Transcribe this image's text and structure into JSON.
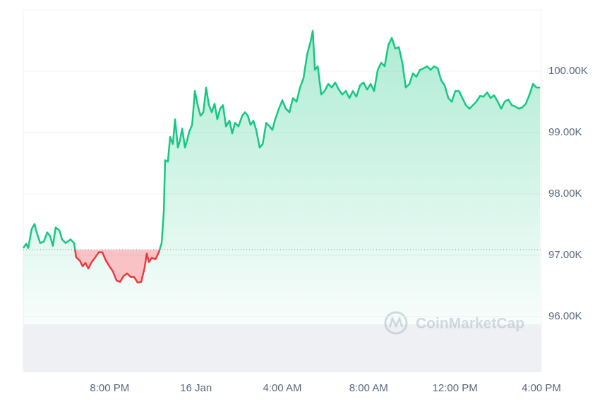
{
  "chart_data": {
    "type": "line",
    "x": [
      0,
      0.13,
      0.23,
      0.39,
      0.52,
      0.62,
      0.78,
      0.95,
      1.11,
      1.24,
      1.37,
      1.5,
      1.67,
      1.8,
      1.96,
      2.19,
      2.35,
      2.45,
      2.62,
      2.75,
      2.88,
      3.01,
      3.17,
      3.34,
      3.5,
      3.66,
      3.83,
      3.99,
      4.15,
      4.32,
      4.48,
      4.64,
      4.81,
      4.97,
      5.13,
      5.3,
      5.46,
      5.62,
      5.72,
      5.82,
      5.95,
      6.12,
      6.28,
      6.41,
      6.51,
      6.57,
      6.7,
      6.8,
      6.93,
      7.03,
      7.16,
      7.26,
      7.36,
      7.49,
      7.59,
      7.68,
      7.82,
      7.95,
      8.08,
      8.21,
      8.34,
      8.47,
      8.6,
      8.73,
      8.86,
      8.99,
      9.12,
      9.25,
      9.39,
      9.55,
      9.68,
      9.81,
      9.97,
      10.14,
      10.27,
      10.4,
      10.53,
      10.66,
      10.79,
      10.95,
      11.09,
      11.25,
      11.41,
      11.54,
      11.67,
      11.84,
      12,
      12.16,
      12.33,
      12.49,
      12.66,
      12.82,
      12.98,
      13.15,
      13.31,
      13.41,
      13.51,
      13.64,
      13.8,
      13.96,
      14.13,
      14.29,
      14.45,
      14.62,
      14.78,
      14.94,
      15.11,
      15.27,
      15.43,
      15.6,
      15.76,
      15.93,
      16.09,
      16.25,
      16.42,
      16.58,
      16.74,
      16.91,
      17.07,
      17.23,
      17.4,
      17.56,
      17.72,
      17.89,
      18.05,
      18.21,
      18.38,
      18.54,
      18.71,
      18.87,
      19.03,
      19.2,
      19.36,
      19.52,
      19.69,
      19.85,
      20.01,
      20.18,
      20.34,
      20.5,
      20.67,
      20.83,
      20.99,
      21.16,
      21.32,
      21.49,
      21.65,
      21.81,
      21.98,
      22.14,
      22.3,
      22.47,
      22.63,
      22.79,
      22.96,
      23.12,
      23.28,
      23.45,
      23.61,
      23.77,
      23.94
    ],
    "values": [
      97118,
      97187,
      97118,
      97429,
      97510,
      97372,
      97199,
      97222,
      97372,
      97314,
      97153,
      97453,
      97406,
      97257,
      97199,
      97257,
      97199,
      96968,
      96911,
      96819,
      96876,
      96784,
      96888,
      96968,
      97049,
      97049,
      96911,
      96819,
      96738,
      96588,
      96565,
      96657,
      96703,
      96646,
      96646,
      96554,
      96565,
      96796,
      97026,
      96888,
      96957,
      96934,
      97049,
      97199,
      97718,
      98548,
      98525,
      98928,
      98813,
      99216,
      98755,
      98870,
      99066,
      98755,
      98870,
      99009,
      99124,
      99677,
      99447,
      99274,
      99331,
      99735,
      99447,
      99331,
      99470,
      99216,
      99389,
      99447,
      99101,
      99193,
      98986,
      99159,
      99101,
      99274,
      99331,
      99274,
      99124,
      99193,
      99043,
      98755,
      98813,
      99159,
      99101,
      99043,
      99216,
      99389,
      99527,
      99389,
      99331,
      99562,
      99504,
      99735,
      99885,
      100277,
      100484,
      100657,
      100023,
      100081,
      99620,
      99677,
      99793,
      99735,
      99816,
      99700,
      99620,
      99677,
      99562,
      99677,
      99585,
      99769,
      99816,
      99700,
      99793,
      99677,
      100023,
      100138,
      100081,
      100427,
      100542,
      100369,
      100392,
      100138,
      99735,
      99793,
      99965,
      99908,
      100023,
      100046,
      100081,
      100023,
      100081,
      100046,
      99850,
      99769,
      99562,
      99504,
      99677,
      99677,
      99562,
      99447,
      99389,
      99447,
      99504,
      99597,
      99585,
      99654,
      99562,
      99608,
      99504,
      99389,
      99504,
      99539,
      99447,
      99424,
      99389,
      99412,
      99470,
      99620,
      99793,
      99735,
      99735
    ],
    "up_color": "#16c784",
    "down_color": "#ea3943",
    "baseline": 97090,
    "xlim": [
      0,
      24
    ],
    "xticks": [
      {
        "value": 4,
        "label": "8:00 PM"
      },
      {
        "value": 8,
        "label": "16 Jan"
      },
      {
        "value": 12,
        "label": "4:00 AM"
      },
      {
        "value": 16,
        "label": "8:00 AM"
      },
      {
        "value": 20,
        "label": "12:00 PM"
      },
      {
        "value": 24,
        "label": "4:00 PM"
      }
    ],
    "ylim": [
      96000,
      101000
    ],
    "yticks": [
      {
        "value": 96000,
        "label": "96.00K"
      },
      {
        "value": 97000,
        "label": "97.00K"
      },
      {
        "value": 98000,
        "label": "98.00K"
      },
      {
        "value": 99000,
        "label": "99.00K"
      },
      {
        "value": 100000,
        "label": "100.00K"
      }
    ],
    "grid": true,
    "watermark": "CoinMarketCap"
  }
}
